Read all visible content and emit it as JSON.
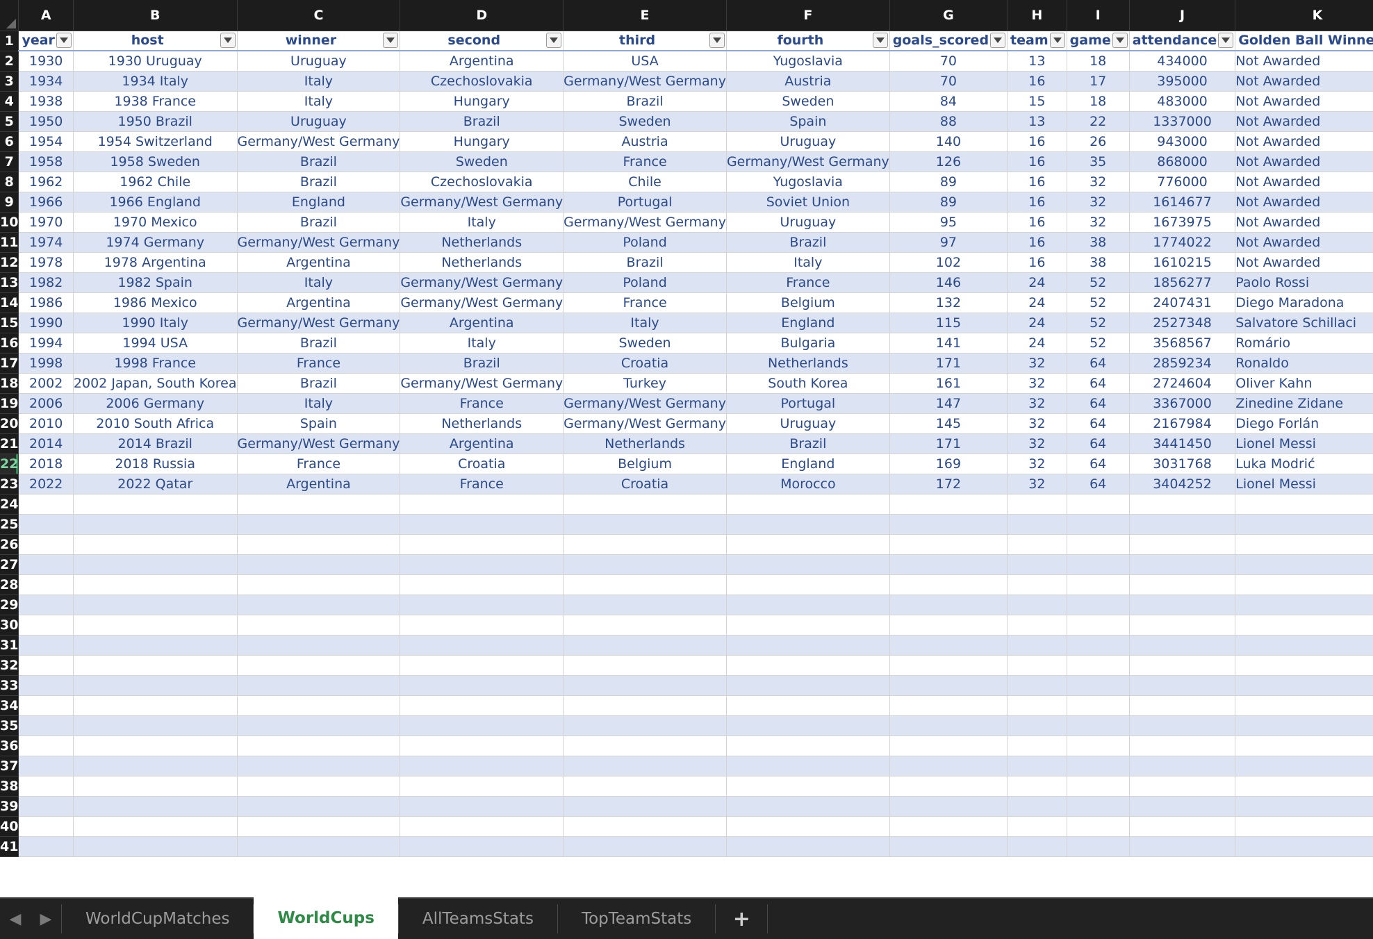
{
  "sheet": {
    "column_letters": [
      "A",
      "B",
      "C",
      "D",
      "E",
      "F",
      "G",
      "H",
      "I",
      "J",
      "K"
    ],
    "headers": [
      "year",
      "host",
      "winner",
      "second",
      "third",
      "fourth",
      "goals_scored",
      "teams",
      "games",
      "attendance",
      "Golden Ball Winner"
    ],
    "header_visible": [
      "year",
      "host",
      "winner",
      "second",
      "third",
      "fourth",
      "goals_scored",
      "team",
      "game",
      "attendance",
      "Golden Ball Winner"
    ],
    "rows": [
      [
        "1930",
        "1930 Uruguay",
        "Uruguay",
        "Argentina",
        "USA",
        "Yugoslavia",
        "70",
        "13",
        "18",
        "434000",
        "Not Awarded"
      ],
      [
        "1934",
        "1934 Italy",
        "Italy",
        "Czechoslovakia",
        "Germany/West Germany",
        "Austria",
        "70",
        "16",
        "17",
        "395000",
        "Not Awarded"
      ],
      [
        "1938",
        "1938 France",
        "Italy",
        "Hungary",
        "Brazil",
        "Sweden",
        "84",
        "15",
        "18",
        "483000",
        "Not Awarded"
      ],
      [
        "1950",
        "1950 Brazil",
        "Uruguay",
        "Brazil",
        "Sweden",
        "Spain",
        "88",
        "13",
        "22",
        "1337000",
        "Not Awarded"
      ],
      [
        "1954",
        "1954 Switzerland",
        "Germany/West Germany",
        "Hungary",
        "Austria",
        "Uruguay",
        "140",
        "16",
        "26",
        "943000",
        "Not Awarded"
      ],
      [
        "1958",
        "1958 Sweden",
        "Brazil",
        "Sweden",
        "France",
        "Germany/West Germany",
        "126",
        "16",
        "35",
        "868000",
        "Not Awarded"
      ],
      [
        "1962",
        "1962 Chile",
        "Brazil",
        "Czechoslovakia",
        "Chile",
        "Yugoslavia",
        "89",
        "16",
        "32",
        "776000",
        "Not Awarded"
      ],
      [
        "1966",
        "1966 England",
        "England",
        "Germany/West Germany",
        "Portugal",
        "Soviet Union",
        "89",
        "16",
        "32",
        "1614677",
        "Not Awarded"
      ],
      [
        "1970",
        "1970 Mexico",
        "Brazil",
        "Italy",
        "Germany/West Germany",
        "Uruguay",
        "95",
        "16",
        "32",
        "1673975",
        "Not Awarded"
      ],
      [
        "1974",
        "1974 Germany",
        "Germany/West Germany",
        "Netherlands",
        "Poland",
        "Brazil",
        "97",
        "16",
        "38",
        "1774022",
        "Not Awarded"
      ],
      [
        "1978",
        "1978 Argentina",
        "Argentina",
        "Netherlands",
        "Brazil",
        "Italy",
        "102",
        "16",
        "38",
        "1610215",
        "Not Awarded"
      ],
      [
        "1982",
        "1982 Spain",
        "Italy",
        "Germany/West Germany",
        "Poland",
        "France",
        "146",
        "24",
        "52",
        "1856277",
        "Paolo Rossi"
      ],
      [
        "1986",
        "1986 Mexico",
        "Argentina",
        "Germany/West Germany",
        "France",
        "Belgium",
        "132",
        "24",
        "52",
        "2407431",
        "Diego Maradona"
      ],
      [
        "1990",
        "1990 Italy",
        "Germany/West Germany",
        "Argentina",
        "Italy",
        "England",
        "115",
        "24",
        "52",
        "2527348",
        "Salvatore Schillaci"
      ],
      [
        "1994",
        "1994 USA",
        "Brazil",
        "Italy",
        "Sweden",
        "Bulgaria",
        "141",
        "24",
        "52",
        "3568567",
        "Romário"
      ],
      [
        "1998",
        "1998 France",
        "France",
        "Brazil",
        "Croatia",
        "Netherlands",
        "171",
        "32",
        "64",
        "2859234",
        "Ronaldo"
      ],
      [
        "2002",
        "2002 Japan, South Korea",
        "Brazil",
        "Germany/West Germany",
        "Turkey",
        "South Korea",
        "161",
        "32",
        "64",
        "2724604",
        "Oliver Kahn"
      ],
      [
        "2006",
        "2006 Germany",
        "Italy",
        "France",
        "Germany/West Germany",
        "Portugal",
        "147",
        "32",
        "64",
        "3367000",
        "Zinedine Zidane"
      ],
      [
        "2010",
        "2010 South Africa",
        "Spain",
        "Netherlands",
        "Germany/West Germany",
        "Uruguay",
        "145",
        "32",
        "64",
        "2167984",
        "Diego Forlán"
      ],
      [
        "2014",
        "2014 Brazil",
        "Germany/West Germany",
        "Argentina",
        "Netherlands",
        "Brazil",
        "171",
        "32",
        "64",
        "3441450",
        "Lionel Messi"
      ],
      [
        "2018",
        "2018 Russia",
        "France",
        "Croatia",
        "Belgium",
        "England",
        "169",
        "32",
        "64",
        "3031768",
        "Luka Modrić"
      ],
      [
        "2022",
        "2022 Qatar",
        "Argentina",
        "France",
        "Croatia",
        "Morocco",
        "172",
        "32",
        "64",
        "3404252",
        "Lionel Messi"
      ]
    ],
    "row_numbers": [
      "1",
      "2",
      "3",
      "4",
      "5",
      "6",
      "7",
      "8",
      "9",
      "10",
      "11",
      "12",
      "13",
      "14",
      "15",
      "16",
      "17",
      "18",
      "19",
      "20",
      "21",
      "22",
      "23",
      "24",
      "25",
      "26",
      "27",
      "28",
      "29",
      "30",
      "31",
      "32",
      "33",
      "34",
      "35",
      "36",
      "37",
      "38",
      "39",
      "40",
      "41"
    ],
    "active_row": "22"
  },
  "tabs": {
    "sheets": [
      "WorldCupMatches",
      "WorldCups",
      "AllTeamsStats",
      "TopTeamStats"
    ],
    "active": "WorldCups",
    "add_label": "+",
    "prev_icon": "chevron-left-icon",
    "next_icon": "chevron-right-icon"
  },
  "colors": {
    "band": "#dce3f2",
    "text": "#2b4a8c",
    "header_bg": "#1c1c1c",
    "active_tab_text": "#2e8b45"
  }
}
